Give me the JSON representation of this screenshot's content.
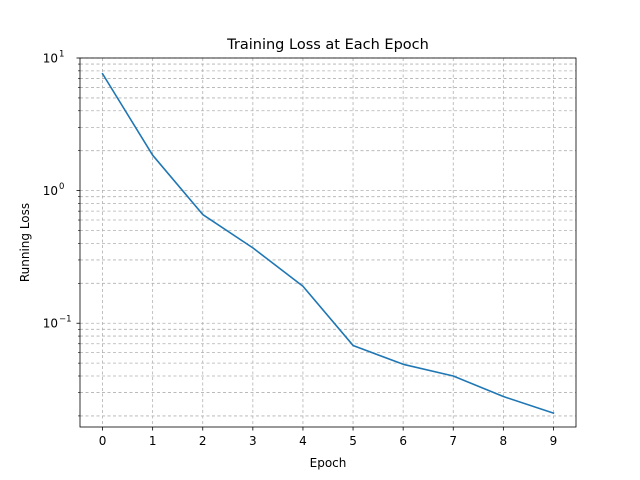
{
  "chart_data": {
    "type": "line",
    "title": "Training Loss at Each Epoch",
    "xlabel": "Epoch",
    "ylabel": "Running Loss",
    "yscale": "log",
    "grid": true,
    "xlim": [
      -0.45,
      9.45
    ],
    "ylim": [
      0.0165,
      10
    ],
    "x_ticks": [
      "0",
      "1",
      "2",
      "3",
      "4",
      "5",
      "6",
      "7",
      "8",
      "9"
    ],
    "y_ticks": [
      {
        "base": "10",
        "exp": "1"
      },
      {
        "base": "10",
        "exp": "0"
      },
      {
        "base": "10",
        "exp": "−1"
      }
    ],
    "series": [
      {
        "color": "#1f77b4",
        "x": [
          0,
          1,
          2,
          3,
          4,
          5,
          6,
          7,
          8,
          9
        ],
        "values": [
          7.6,
          1.85,
          0.66,
          0.37,
          0.19,
          0.068,
          0.049,
          0.04,
          0.028,
          0.021
        ]
      }
    ]
  }
}
